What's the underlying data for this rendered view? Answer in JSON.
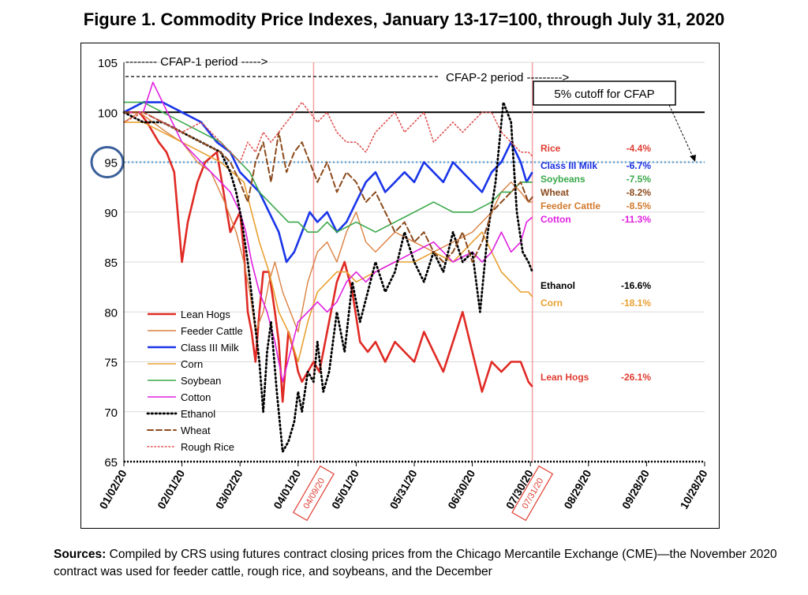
{
  "figure_title": "Figure 1. Commodity Price Indexes, January 13-17=100, through July 31, 2020",
  "sources_label": "Sources:",
  "sources_text": " Compiled by CRS using futures contract closing prices from the Chicago Mercantile Exchange (CME)—the November 2020 contract was used for feeder cattle, rough rice, and soybeans, and the December",
  "chart_data": {
    "type": "line",
    "title": "Figure 1. Commodity Price Indexes, January 13-17=100, through July 31, 2020",
    "xlabel": "",
    "ylabel": "",
    "ylim": [
      65,
      105
    ],
    "yticks": [
      65,
      70,
      75,
      80,
      85,
      90,
      95,
      100,
      105
    ],
    "x_range": [
      "01/02/20",
      "10/28/20"
    ],
    "xtick_labels": [
      "01/02/20",
      "02/01/20",
      "03/02/20",
      "04/01/20",
      "05/01/20",
      "05/31/20",
      "06/30/20",
      "07/30/20",
      "08/29/20",
      "09/28/20",
      "10/28/20"
    ],
    "grid": true,
    "reference_lines": [
      {
        "label": "baseline",
        "value": 100,
        "style": "solid-black"
      },
      {
        "label": "5% cutoff for CFAP",
        "value": 95,
        "style": "dotted-blue"
      },
      {
        "label": "floor",
        "value": 65,
        "style": "dotted-black"
      }
    ],
    "vertical_markers": [
      {
        "label": "04/09/20",
        "x_day": 98
      },
      {
        "label": "07/31/20",
        "x_day": 211
      }
    ],
    "period_labels": [
      {
        "text": "-------- CFAP-1 period ----->"
      },
      {
        "text": "CFAP-2 period --------->"
      }
    ],
    "cutoff_box_label": "5% cutoff for CFAP",
    "circled_tick": 95,
    "legend": {
      "placement": "bottom-left",
      "entries": [
        "Lean Hogs",
        "Feeder Cattle",
        "Class III Milk",
        "Corn",
        "Soybean",
        "Cotton",
        "Ethanol",
        "Wheat",
        "Rough Rice"
      ]
    },
    "end_annotations": [
      {
        "name": "Rice",
        "change": "-4.4%",
        "color": "#e03c31"
      },
      {
        "name": "Class III Milk",
        "change": "-6.7%",
        "color": "#1a2fe0"
      },
      {
        "name": "Soybeans",
        "change": "-7.5%",
        "color": "#3aa84a"
      },
      {
        "name": "Wheat",
        "change": "-8.2%",
        "color": "#8b4a1c"
      },
      {
        "name": "Feeder  Cattle",
        "change": "-8.5%",
        "color": "#d27a2c"
      },
      {
        "name": "Cotton",
        "change": "-11.3%",
        "color": "#e020e0"
      },
      {
        "name": "Ethanol",
        "change": "-16.6%",
        "color": "#000000"
      },
      {
        "name": "Corn",
        "change": "-18.1%",
        "color": "#e8a030"
      },
      {
        "name": "Lean Hogs",
        "change": "-26.1%",
        "color": "#e03c31"
      }
    ],
    "series": [
      {
        "name": "Lean Hogs",
        "color": "#e02a24",
        "dash": "solid",
        "width": 2.6,
        "x": [
          0,
          8,
          12,
          15,
          18,
          22,
          26,
          30,
          33,
          38,
          42,
          48,
          55,
          60,
          62,
          64,
          66,
          68,
          70,
          72,
          75,
          78,
          80,
          82,
          85,
          88,
          90,
          92,
          95,
          98,
          101,
          104,
          107,
          110,
          114,
          118,
          122,
          126,
          130,
          135,
          140,
          145,
          150,
          155,
          160,
          165,
          170,
          175,
          180,
          185,
          190,
          195,
          200,
          205,
          209,
          211
        ],
        "y": [
          100,
          100,
          99,
          98,
          97,
          96,
          94,
          85,
          89,
          93,
          95,
          96,
          88,
          90,
          86,
          80,
          78,
          75,
          80,
          84,
          84,
          80,
          77,
          71,
          78,
          76,
          74,
          73,
          74,
          75,
          74,
          77,
          80,
          83,
          85,
          82,
          77,
          76,
          77,
          75,
          77,
          76,
          75,
          78,
          76,
          74,
          77,
          80,
          76,
          72,
          75,
          74,
          75,
          75,
          73,
          72.5
        ]
      },
      {
        "name": "Feeder Cattle",
        "color": "#d98040",
        "dash": "solid",
        "width": 1.4,
        "x": [
          0,
          8,
          15,
          22,
          30,
          38,
          45,
          52,
          58,
          62,
          65,
          68,
          72,
          75,
          78,
          82,
          86,
          90,
          95,
          100,
          105,
          110,
          115,
          120,
          125,
          130,
          140,
          150,
          160,
          170,
          180,
          185,
          190,
          195,
          200,
          205,
          209,
          211
        ],
        "y": [
          99,
          100,
          99,
          98,
          97,
          95,
          94,
          91,
          88,
          85,
          82,
          78,
          80,
          83,
          85,
          82,
          80,
          78,
          83,
          86,
          87,
          85,
          88,
          90,
          87,
          86,
          88,
          87,
          86,
          87,
          88,
          89,
          90,
          92,
          93,
          92,
          91,
          91
        ]
      },
      {
        "name": "Class III Milk",
        "color": "#1a35e8",
        "dash": "solid",
        "width": 2.6,
        "x": [
          0,
          10,
          20,
          30,
          40,
          48,
          55,
          60,
          65,
          70,
          75,
          80,
          84,
          88,
          92,
          96,
          100,
          105,
          110,
          115,
          120,
          125,
          130,
          135,
          140,
          145,
          150,
          155,
          160,
          165,
          170,
          175,
          180,
          185,
          190,
          195,
          200,
          205,
          208,
          211
        ],
        "y": [
          100,
          101,
          101,
          100,
          99,
          97,
          96,
          94,
          93,
          92,
          90,
          88,
          85,
          86,
          88,
          90,
          89,
          90,
          88,
          89,
          91,
          93,
          94,
          92,
          93,
          94,
          93,
          95,
          94,
          93,
          95,
          94,
          93,
          92,
          94,
          95,
          97,
          95,
          93,
          94
        ]
      },
      {
        "name": "Corn",
        "color": "#e8a030",
        "dash": "solid",
        "width": 1.6,
        "x": [
          0,
          10,
          20,
          30,
          40,
          50,
          56,
          62,
          66,
          70,
          75,
          80,
          85,
          90,
          95,
          100,
          105,
          110,
          115,
          120,
          130,
          140,
          150,
          160,
          170,
          180,
          185,
          190,
          195,
          200,
          205,
          209,
          211
        ],
        "y": [
          99,
          99,
          98,
          97,
          96,
          95,
          94,
          93,
          90,
          87,
          84,
          80,
          78,
          75,
          79,
          82,
          83,
          84,
          84,
          83,
          84,
          85,
          85,
          86,
          85,
          87,
          88,
          86,
          84,
          83,
          82,
          82,
          81.5
        ]
      },
      {
        "name": "Soybean",
        "color": "#3aa84a",
        "dash": "solid",
        "width": 1.6,
        "x": [
          0,
          10,
          20,
          30,
          40,
          50,
          55,
          60,
          65,
          70,
          75,
          80,
          85,
          90,
          95,
          100,
          105,
          110,
          120,
          130,
          140,
          150,
          160,
          170,
          180,
          190,
          195,
          200,
          205,
          211
        ],
        "y": [
          101,
          101,
          100,
          99,
          98,
          97,
          96,
          95,
          94,
          92,
          91,
          90,
          89,
          89,
          88,
          88,
          89,
          88,
          89,
          88,
          89,
          90,
          91,
          90,
          90,
          91,
          92,
          92,
          93,
          93
        ]
      },
      {
        "name": "Cotton",
        "color": "#e020e0",
        "dash": "solid",
        "width": 1.6,
        "x": [
          0,
          10,
          15,
          20,
          25,
          30,
          35,
          40,
          45,
          50,
          55,
          60,
          63,
          66,
          70,
          74,
          78,
          82,
          86,
          90,
          95,
          100,
          105,
          110,
          115,
          120,
          125,
          130,
          140,
          150,
          160,
          170,
          180,
          185,
          190,
          195,
          200,
          205,
          208,
          211
        ],
        "y": [
          100,
          100,
          103,
          101,
          99,
          97,
          96,
          95,
          94,
          93,
          92,
          90,
          88,
          85,
          82,
          80,
          77,
          73,
          76,
          79,
          80,
          81,
          80,
          81,
          83,
          84,
          83,
          84,
          85,
          86,
          87,
          85,
          86,
          85,
          86,
          88,
          86,
          87,
          89,
          89.5
        ]
      },
      {
        "name": "Ethanol",
        "color": "#000000",
        "dash": "dots",
        "width": 2.8,
        "x": [
          0,
          10,
          20,
          30,
          40,
          50,
          55,
          58,
          61,
          64,
          67,
          70,
          72,
          74,
          76,
          79,
          82,
          85,
          88,
          90,
          92,
          95,
          98,
          100,
          103,
          106,
          110,
          114,
          118,
          122,
          126,
          130,
          135,
          140,
          145,
          150,
          155,
          160,
          165,
          170,
          175,
          180,
          184,
          188,
          192,
          196,
          200,
          203,
          206,
          209,
          211
        ],
        "y": [
          100,
          99,
          99,
          98,
          97,
          96,
          94,
          92,
          89,
          85,
          80,
          75,
          70,
          76,
          79,
          72,
          66,
          67,
          69,
          72,
          70,
          74,
          73,
          77,
          72,
          74,
          80,
          76,
          83,
          79,
          82,
          85,
          82,
          84,
          88,
          85,
          83,
          86,
          84,
          88,
          85,
          86,
          80,
          88,
          93,
          101,
          99,
          90,
          86,
          85,
          84
        ]
      },
      {
        "name": "Wheat",
        "color": "#8b4a1c",
        "dash": "dashes",
        "width": 2.0,
        "x": [
          0,
          10,
          20,
          30,
          40,
          50,
          55,
          60,
          64,
          68,
          72,
          76,
          80,
          84,
          88,
          92,
          96,
          100,
          105,
          110,
          115,
          120,
          125,
          130,
          135,
          140,
          145,
          150,
          155,
          160,
          165,
          170,
          175,
          180,
          185,
          190,
          195,
          200,
          205,
          209,
          211
        ],
        "y": [
          100,
          100,
          99,
          98,
          97,
          96,
          95,
          93,
          91,
          95,
          97,
          93,
          98,
          94,
          96,
          97,
          95,
          93,
          95,
          92,
          94,
          93,
          91,
          92,
          90,
          88,
          89,
          87,
          88,
          86,
          85,
          86,
          88,
          85,
          87,
          90,
          91,
          92,
          93,
          91,
          91.5
        ]
      },
      {
        "name": "Rough Rice",
        "color": "#e05050",
        "dash": "smalldots",
        "width": 1.6,
        "x": [
          0,
          10,
          20,
          30,
          40,
          50,
          55,
          60,
          64,
          68,
          72,
          76,
          80,
          84,
          88,
          92,
          96,
          100,
          105,
          110,
          115,
          120,
          125,
          130,
          135,
          140,
          145,
          150,
          155,
          160,
          165,
          170,
          175,
          180,
          185,
          190,
          195,
          200,
          205,
          209,
          211
        ],
        "y": [
          99,
          100,
          99,
          98,
          99,
          97,
          96,
          95,
          97,
          96,
          98,
          97,
          98,
          99,
          100,
          101,
          100,
          99,
          100,
          98,
          97,
          97,
          96,
          98,
          99,
          100,
          98,
          99,
          100,
          97,
          98,
          99,
          98,
          99,
          100,
          100,
          98,
          97,
          96,
          96,
          95.6
        ]
      }
    ]
  }
}
